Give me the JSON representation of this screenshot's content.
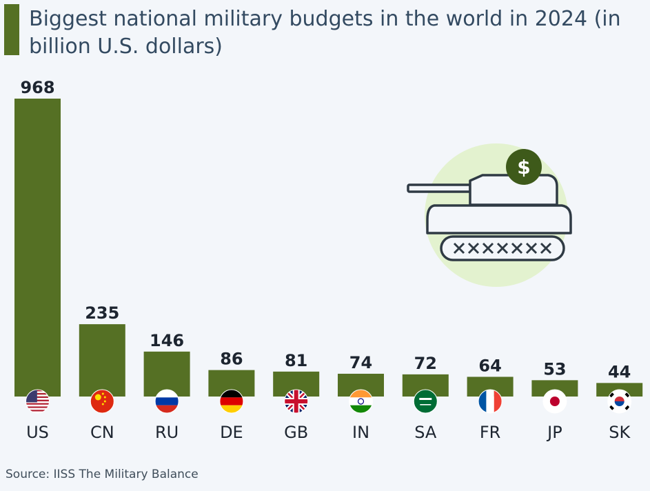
{
  "title": "Biggest national military budgets in the world in 2024 (in billion U.S. dollars)",
  "source": "Source: IISS The Military Balance",
  "colors": {
    "bar": "#557024",
    "accent_circle": "#e3f2cf",
    "icon": "#2f3a44",
    "coin": "#3e5a1a"
  },
  "illustration": {
    "icon": "tank-with-dollar-coin-icon",
    "coin_symbol": "$"
  },
  "chart_data": {
    "type": "bar",
    "title": "Biggest national military budgets in the world in 2024 (in billion U.S. dollars)",
    "categories": [
      "US",
      "CN",
      "RU",
      "DE",
      "GB",
      "IN",
      "SA",
      "FR",
      "JP",
      "SK"
    ],
    "values": [
      968,
      235,
      146,
      86,
      81,
      74,
      72,
      64,
      53,
      44
    ],
    "flags": [
      "flag-us-icon",
      "flag-cn-icon",
      "flag-ru-icon",
      "flag-de-icon",
      "flag-gb-icon",
      "flag-in-icon",
      "flag-sa-icon",
      "flag-fr-icon",
      "flag-jp-icon",
      "flag-sk-icon"
    ],
    "xlabel": "",
    "ylabel": "",
    "ylim": [
      0,
      968
    ],
    "grid": false,
    "legend": "none"
  }
}
